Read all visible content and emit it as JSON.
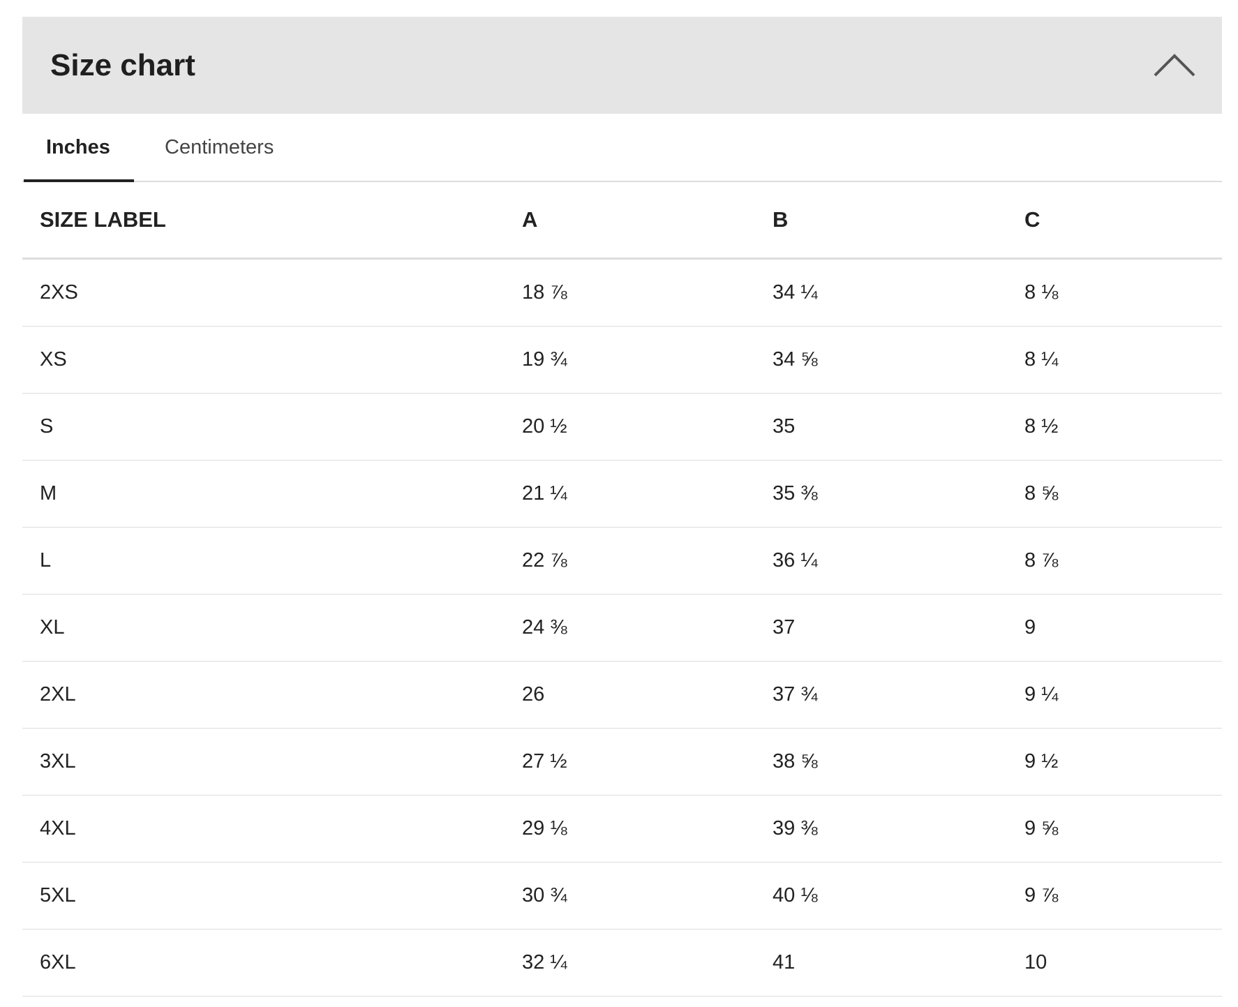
{
  "header": {
    "title": "Size chart"
  },
  "tabs": [
    "Inches",
    "Centimeters"
  ],
  "table": {
    "columns": [
      "SIZE LABEL",
      "A",
      "B",
      "C"
    ],
    "rows": [
      [
        "2XS",
        "18 ⅞",
        "34 ¼",
        "8 ⅛"
      ],
      [
        "XS",
        "19 ¾",
        "34 ⅝",
        "8 ¼"
      ],
      [
        "S",
        "20 ½",
        "35",
        "8 ½"
      ],
      [
        "M",
        "21 ¼",
        "35 ⅜",
        "8 ⅝"
      ],
      [
        "L",
        "22 ⅞",
        "36 ¼",
        "8 ⅞"
      ],
      [
        "XL",
        "24 ⅜",
        "37",
        "9"
      ],
      [
        "2XL",
        "26",
        "37 ¾",
        "9 ¼"
      ],
      [
        "3XL",
        "27 ½",
        "38 ⅝",
        "9 ½"
      ],
      [
        "4XL",
        "29 ⅛",
        "39 ⅜",
        "9 ⅝"
      ],
      [
        "5XL",
        "30 ¾",
        "40 ⅛",
        "9 ⅞"
      ],
      [
        "6XL",
        "32 ¼",
        "41",
        "10"
      ]
    ]
  }
}
